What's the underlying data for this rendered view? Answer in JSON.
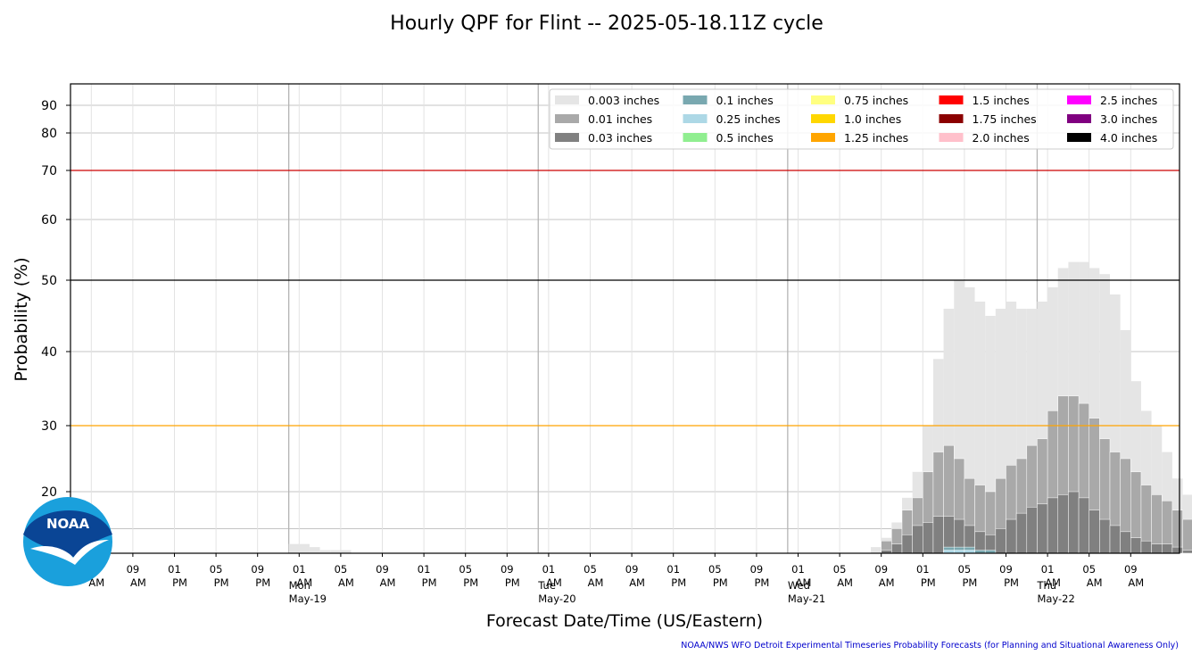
{
  "chart_data": {
    "type": "bar",
    "title": "Hourly QPF for Flint -- 2025-05-18.11Z cycle",
    "xlabel": "Forecast Date/Time (US/Eastern)",
    "ylabel": "Probability (%)",
    "credit": "NOAA/NWS WFO Detroit Experimental Timeseries Probability Forecasts (for Planning and Situational Awareness Only)",
    "yscale": "nonlinear (compressed toward top)",
    "ylim": [
      0,
      95
    ],
    "yticks": [
      "20",
      "30",
      "40",
      "50",
      "60",
      "70",
      "80",
      "90"
    ],
    "ytick_values": [
      20,
      30,
      40,
      50,
      60,
      70,
      80,
      90
    ],
    "ref_lines": [
      {
        "value": 70,
        "color": "#cc0000"
      },
      {
        "value": 50,
        "color": "#000000"
      },
      {
        "value": 30,
        "color": "#ffa500"
      }
    ],
    "grid": true,
    "legend_position": "top-right",
    "x_start": "2025-05-19 03:00",
    "x_step_hours": 1,
    "x_tick_hours": [
      "05",
      "09",
      "01",
      "05",
      "09",
      "01",
      "05",
      "09",
      "01",
      "05",
      "09",
      "01",
      "05",
      "09",
      "01",
      "05",
      "09",
      "01",
      "05",
      "09",
      "01",
      "05",
      "09",
      "01",
      "05",
      "09"
    ],
    "x_tick_ampm": [
      "AM",
      "AM",
      "PM",
      "PM",
      "PM",
      "AM",
      "AM",
      "AM",
      "PM",
      "PM",
      "PM",
      "AM",
      "AM",
      "AM",
      "PM",
      "PM",
      "PM",
      "AM",
      "AM",
      "AM",
      "PM",
      "PM",
      "PM",
      "AM",
      "AM",
      "AM"
    ],
    "day_labels": [
      {
        "weekday": "Mon",
        "date": "May-19"
      },
      {
        "weekday": "Tue",
        "date": "May-20"
      },
      {
        "weekday": "Wed",
        "date": "May-21"
      },
      {
        "weekday": "Thu",
        "date": "May-22"
      }
    ],
    "series": [
      {
        "name": "0.003 inches",
        "color": "#e5e5e5",
        "start": 21,
        "values": [
          3,
          3,
          2,
          1,
          1,
          1,
          0,
          0,
          0,
          0,
          0,
          0,
          0,
          0,
          0,
          0,
          0,
          0,
          0,
          0,
          0,
          0,
          0,
          0,
          0,
          0,
          0,
          0,
          0,
          0,
          0,
          0,
          0,
          0,
          0,
          0,
          0,
          0,
          0,
          0,
          0,
          0,
          0,
          0,
          0,
          0,
          0,
          0,
          0,
          0,
          0,
          0,
          0,
          0,
          0,
          0,
          2,
          5,
          10,
          18,
          23,
          30,
          39,
          46,
          50,
          49,
          47,
          45,
          46,
          47,
          46,
          46,
          47,
          49,
          52,
          53,
          53,
          52,
          51,
          48,
          43,
          36,
          32,
          30,
          26,
          22,
          19,
          16,
          14,
          12,
          9,
          7,
          5,
          4,
          4,
          6,
          14,
          16,
          17,
          18,
          19
        ]
      },
      {
        "name": "0.01 inches",
        "color": "#a9a9a9",
        "start": 21,
        "values": [
          0,
          0,
          0,
          0,
          0,
          0,
          0,
          0,
          0,
          0,
          0,
          0,
          0,
          0,
          0,
          0,
          0,
          0,
          0,
          0,
          0,
          0,
          0,
          0,
          0,
          0,
          0,
          0,
          0,
          0,
          0,
          0,
          0,
          0,
          0,
          0,
          0,
          0,
          0,
          0,
          0,
          0,
          0,
          0,
          0,
          0,
          0,
          0,
          0,
          0,
          0,
          0,
          0,
          0,
          0,
          0,
          0,
          4,
          8,
          14,
          18,
          23,
          26,
          27,
          25,
          22,
          21,
          20,
          22,
          24,
          25,
          27,
          28,
          32,
          34,
          34,
          33,
          31,
          28,
          26,
          25,
          23,
          21,
          19,
          17,
          14,
          11,
          9,
          6,
          4,
          2,
          1,
          0,
          0,
          0,
          0,
          0,
          1,
          2,
          3,
          3
        ]
      },
      {
        "name": "0.03 inches",
        "color": "#808080",
        "start": 21,
        "values": [
          0,
          0,
          0,
          0,
          0,
          0,
          0,
          0,
          0,
          0,
          0,
          0,
          0,
          0,
          0,
          0,
          0,
          0,
          0,
          0,
          0,
          0,
          0,
          0,
          0,
          0,
          0,
          0,
          0,
          0,
          0,
          0,
          0,
          0,
          0,
          0,
          0,
          0,
          0,
          0,
          0,
          0,
          0,
          0,
          0,
          0,
          0,
          0,
          0,
          0,
          0,
          0,
          0,
          0,
          0,
          0,
          0,
          1,
          3,
          6,
          9,
          10,
          12,
          12,
          11,
          9,
          7,
          6,
          8,
          11,
          13,
          15,
          16,
          18,
          19,
          20,
          18,
          14,
          11,
          9,
          7,
          5,
          4,
          3,
          3,
          2,
          1,
          0,
          0,
          0,
          0,
          0,
          0,
          0,
          0,
          0,
          0,
          0,
          0,
          0,
          0
        ]
      },
      {
        "name": "0.1 inches",
        "color": "#79a8b0",
        "start": 21,
        "values": [
          0,
          0,
          0,
          0,
          0,
          0,
          0,
          0,
          0,
          0,
          0,
          0,
          0,
          0,
          0,
          0,
          0,
          0,
          0,
          0,
          0,
          0,
          0,
          0,
          0,
          0,
          0,
          0,
          0,
          0,
          0,
          0,
          0,
          0,
          0,
          0,
          0,
          0,
          0,
          0,
          0,
          0,
          0,
          0,
          0,
          0,
          0,
          0,
          0,
          0,
          0,
          0,
          0,
          0,
          0,
          0,
          0,
          0,
          0,
          0,
          0,
          0,
          0,
          2,
          2,
          2,
          1,
          1,
          0,
          0,
          0,
          0,
          0,
          0,
          0,
          0,
          0,
          0,
          0,
          0,
          0,
          0,
          0,
          0,
          0,
          0,
          0,
          0,
          0,
          0,
          0,
          0,
          0,
          0,
          0,
          0,
          0,
          0,
          0,
          0,
          0
        ]
      },
      {
        "name": "0.25 inches",
        "color": "#add8e6",
        "start": 21,
        "values": [
          0,
          0,
          0,
          0,
          0,
          0,
          0,
          0,
          0,
          0,
          0,
          0,
          0,
          0,
          0,
          0,
          0,
          0,
          0,
          0,
          0,
          0,
          0,
          0,
          0,
          0,
          0,
          0,
          0,
          0,
          0,
          0,
          0,
          0,
          0,
          0,
          0,
          0,
          0,
          0,
          0,
          0,
          0,
          0,
          0,
          0,
          0,
          0,
          0,
          0,
          0,
          0,
          0,
          0,
          0,
          0,
          0,
          0,
          0,
          0,
          0,
          0,
          0,
          1,
          1,
          1,
          0,
          0,
          0,
          0,
          0,
          0,
          0,
          0,
          0,
          0,
          0,
          0,
          0,
          0,
          0,
          0,
          0,
          0,
          0,
          0,
          0,
          0,
          0,
          0,
          0,
          0,
          0,
          0,
          0,
          0,
          0,
          0,
          0,
          0,
          0
        ]
      },
      {
        "name": "0.5 inches",
        "color": "#90ee90",
        "start": 21,
        "values": []
      },
      {
        "name": "0.75 inches",
        "color": "#ffff80",
        "start": 21,
        "values": []
      },
      {
        "name": "1.0 inches",
        "color": "#ffd700",
        "start": 21,
        "values": []
      },
      {
        "name": "1.25 inches",
        "color": "#ffa500",
        "start": 21,
        "values": []
      },
      {
        "name": "1.5 inches",
        "color": "#ff0000",
        "start": 21,
        "values": []
      },
      {
        "name": "1.75 inches",
        "color": "#8b0000",
        "start": 21,
        "values": []
      },
      {
        "name": "2.0 inches",
        "color": "#ffc0cb",
        "start": 21,
        "values": []
      },
      {
        "name": "2.5 inches",
        "color": "#ff00ff",
        "start": 21,
        "values": []
      },
      {
        "name": "3.0 inches",
        "color": "#800080",
        "start": 21,
        "values": []
      },
      {
        "name": "4.0 inches",
        "color": "#000000",
        "start": 21,
        "values": []
      }
    ]
  },
  "logo": {
    "text": "NOAA",
    "colors": [
      "#0a4595",
      "#1aa0dc"
    ]
  }
}
